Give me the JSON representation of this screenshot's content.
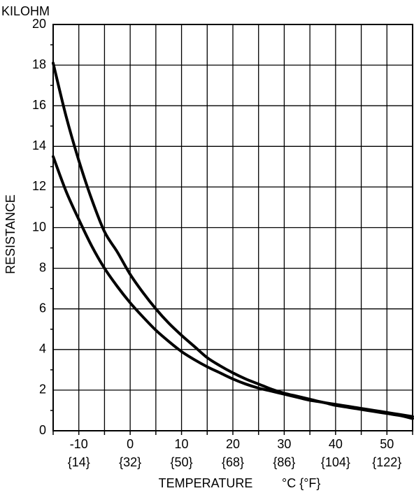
{
  "chart_data": {
    "type": "line",
    "units_label": "KILOHM",
    "ylabel": "RESISTANCE",
    "xlabel": "TEMPERATURE",
    "xunit": "°C {°F}",
    "xlim": [
      -15,
      55
    ],
    "ylim": [
      0,
      20
    ],
    "x_ticks": [
      -10,
      0,
      10,
      20,
      30,
      40,
      50
    ],
    "x_tick_labels_f": [
      "{14}",
      "{32}",
      "{50}",
      "{68}",
      "{86}",
      "{104}",
      "{122}"
    ],
    "y_ticks": [
      0,
      2,
      4,
      6,
      8,
      10,
      12,
      14,
      16,
      18,
      20
    ],
    "grid": true,
    "series": [
      {
        "x": [
          -15,
          -12.5,
          -10,
          -7.5,
          -5,
          -2.5,
          0,
          2.5,
          5,
          7.5,
          10,
          12.5,
          15,
          17.5,
          20,
          22.5,
          25,
          27.5,
          30,
          32.5,
          35,
          37.5,
          40,
          42.5,
          45,
          47.5,
          50,
          52.5,
          55
        ],
        "values": [
          18.1,
          15.5,
          13.3,
          11.4,
          9.8,
          8.8,
          7.7,
          6.8,
          6.0,
          5.3,
          4.7,
          4.15,
          3.6,
          3.2,
          2.85,
          2.55,
          2.3,
          2.05,
          1.85,
          1.7,
          1.55,
          1.4,
          1.3,
          1.2,
          1.1,
          1.0,
          0.9,
          0.8,
          0.7
        ]
      },
      {
        "x": [
          -15,
          -12.5,
          -10,
          -7.5,
          -5,
          -2.5,
          0,
          2.5,
          5,
          7.5,
          10,
          12.5,
          15,
          17.5,
          20,
          22.5,
          25,
          27.5,
          30,
          32.5,
          35,
          37.5,
          40,
          42.5,
          45,
          47.5,
          50,
          52.5,
          55
        ],
        "values": [
          13.5,
          11.8,
          10.4,
          9.1,
          8.0,
          7.1,
          6.3,
          5.6,
          4.95,
          4.4,
          3.9,
          3.5,
          3.15,
          2.85,
          2.55,
          2.3,
          2.1,
          1.95,
          1.8,
          1.65,
          1.5,
          1.4,
          1.25,
          1.15,
          1.05,
          0.95,
          0.85,
          0.75,
          0.6
        ]
      }
    ]
  }
}
